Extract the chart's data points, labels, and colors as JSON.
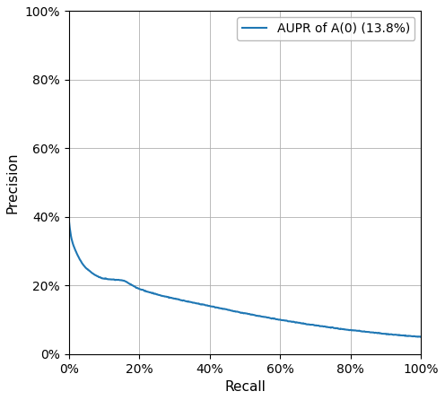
{
  "title": "",
  "xlabel": "Recall",
  "ylabel": "Precision",
  "legend_label": "AUPR of A(0) (13.8%)",
  "line_color": "#1f77b4",
  "line_width": 1.5,
  "xlim": [
    0.0,
    1.0
  ],
  "ylim": [
    0.0,
    1.0
  ],
  "grid": true,
  "background_color": "#ffffff",
  "key_points": {
    "recall_0_001": 0.38,
    "recall_0_02": 0.3,
    "recall_0_05": 0.25,
    "recall_0_10": 0.22,
    "recall_0_20": 0.19,
    "recall_0_40": 0.14,
    "recall_0_60": 0.1,
    "recall_0_80": 0.07,
    "recall_1_00": 0.05
  }
}
